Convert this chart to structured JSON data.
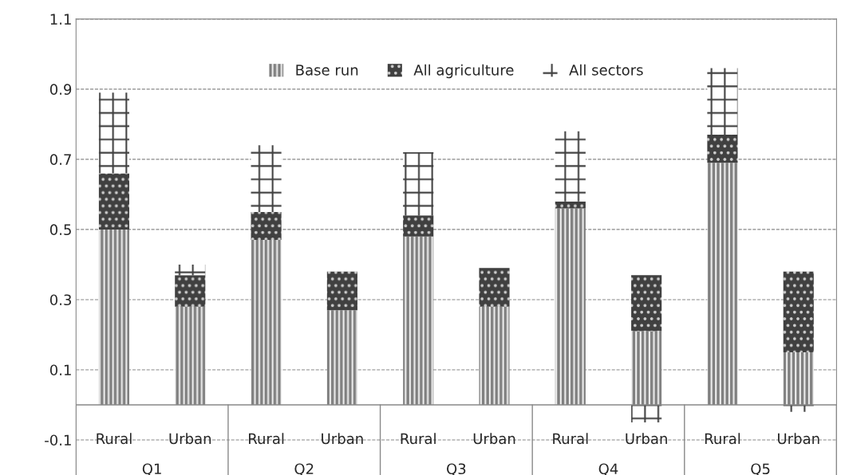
{
  "chart_data": {
    "type": "bar",
    "stacked": true,
    "categories": [
      "Rural",
      "Urban",
      "Rural",
      "Urban",
      "Rural",
      "Urban",
      "Rural",
      "Urban",
      "Rural",
      "Urban"
    ],
    "annotations": [
      "Q1",
      "Q2",
      "Q3",
      "Q4",
      "Q5"
    ],
    "series": [
      {
        "name": "Base run",
        "color": "#7f7f7f",
        "values": [
          0.5,
          0.28,
          0.47,
          0.27,
          0.48,
          0.28,
          0.56,
          0.21,
          0.69,
          0.15
        ]
      },
      {
        "name": "All agriculture",
        "color": "#404040",
        "values": [
          0.16,
          0.09,
          0.08,
          0.11,
          0.06,
          0.11,
          0.02,
          0.16,
          0.08,
          0.23
        ]
      },
      {
        "name": "All sectors",
        "color": "#ffffff",
        "values": [
          0.23,
          0.03,
          0.19,
          0,
          0.18,
          0,
          0.2,
          -0.05,
          0.19,
          -0.02
        ]
      }
    ],
    "ylim": [
      -0.2,
      1.1
    ],
    "yticks": [
      -0.1,
      0.1,
      0.3,
      0.5,
      0.7,
      0.9,
      1.1
    ],
    "grid": "y",
    "legend": "top"
  }
}
